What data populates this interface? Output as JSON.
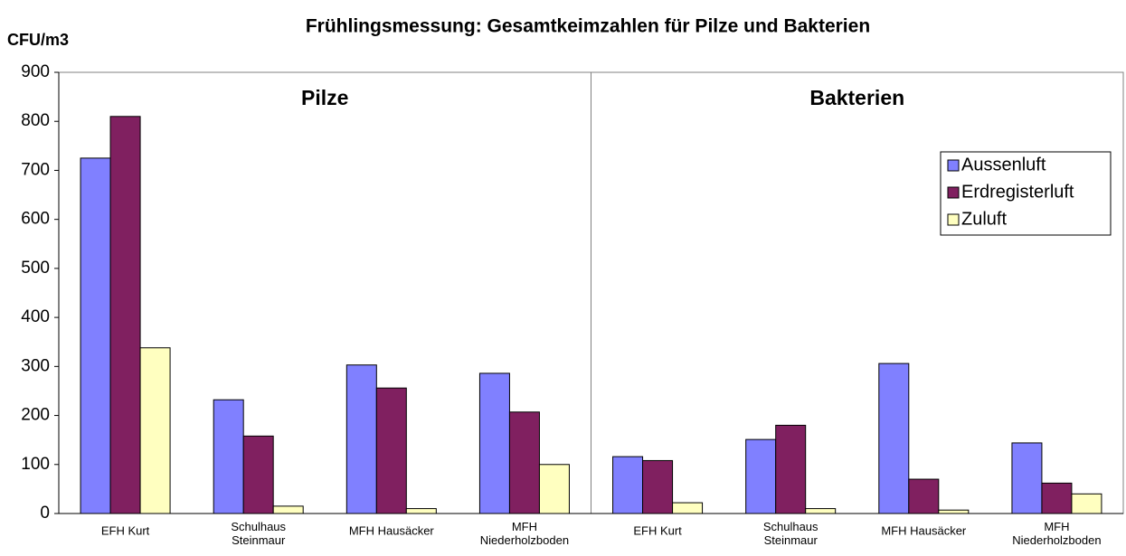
{
  "chart_data": {
    "type": "bar",
    "title": "Frühlingsmessung: Gesamtkeimzahlen für Pilze und Bakterien",
    "y_label": "CFU/m3",
    "annotations": [
      "Pilze",
      "Bakterien"
    ],
    "categories": [
      "EFH Kurt",
      "Schulhaus Steinmaur",
      "MFH Hausäcker",
      "MFH Niederholzboden",
      "EFH Kurt",
      "Schulhaus Steinmaur",
      "MFH Hausäcker",
      "MFH Niederholzboden"
    ],
    "series": [
      {
        "name": "Aussenluft",
        "color": "#8080ff",
        "values": [
          725,
          232,
          303,
          286,
          116,
          151,
          306,
          144
        ]
      },
      {
        "name": "Erdregisterluft",
        "color": "#802060",
        "values": [
          810,
          158,
          256,
          207,
          108,
          180,
          70,
          62
        ]
      },
      {
        "name": "Zuluft",
        "color": "#ffffc0",
        "values": [
          338,
          15,
          10,
          100,
          22,
          10,
          7,
          40
        ]
      }
    ],
    "ylim": [
      0,
      900
    ],
    "yticks": [
      0,
      100,
      200,
      300,
      400,
      500,
      600,
      700,
      800,
      900
    ],
    "grid": false,
    "legend": "upper right"
  }
}
